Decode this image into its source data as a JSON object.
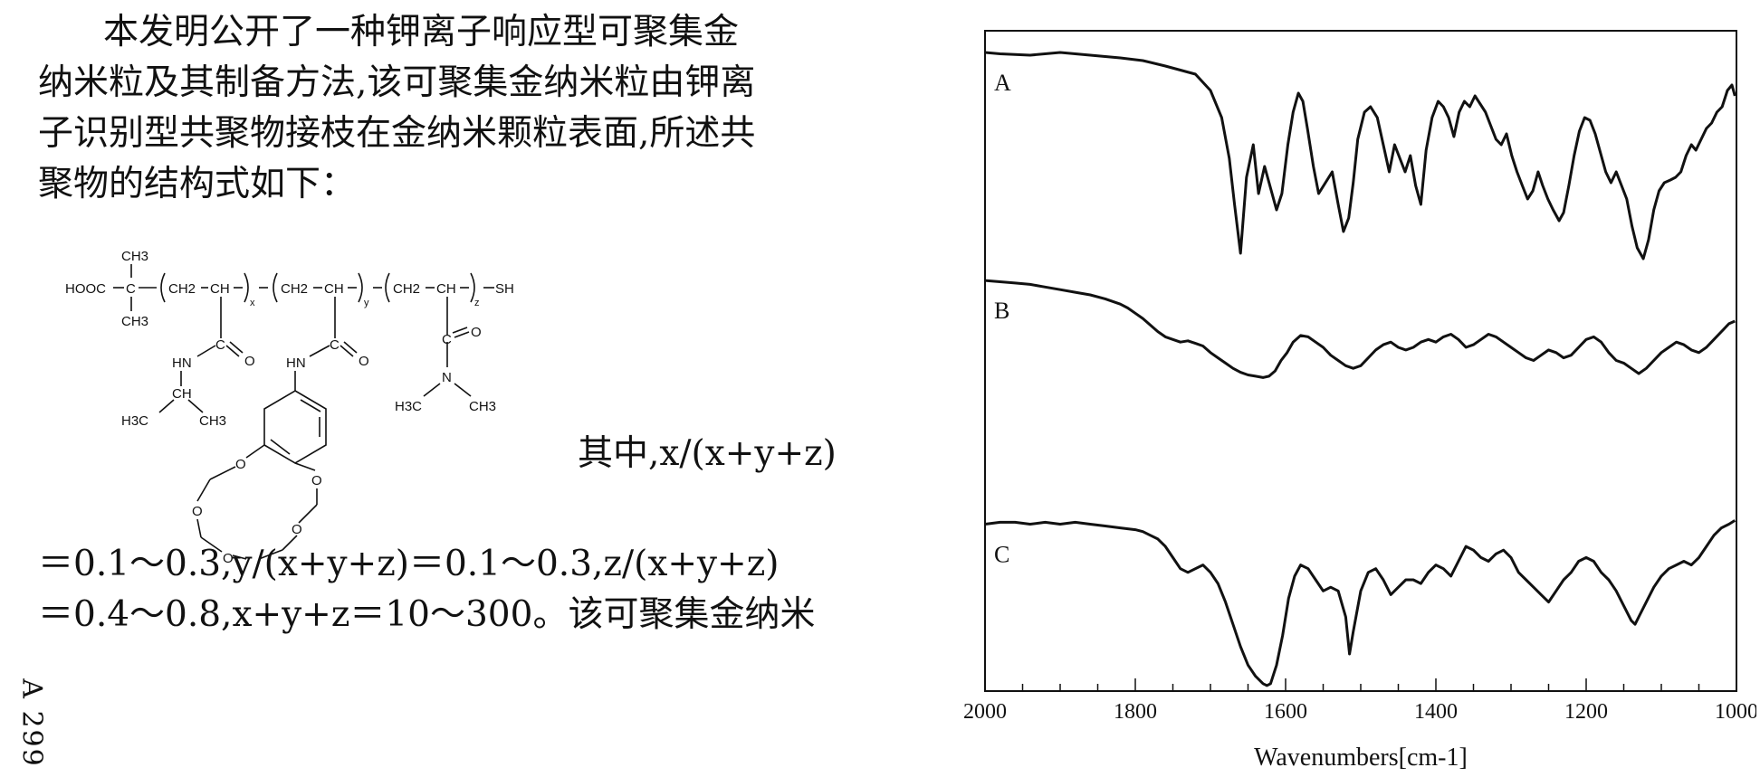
{
  "paragraph_top": [
    "本发明公开了一种钾离子响应型可聚集金",
    "纳米粒及其制备方法,该可聚集金纳米粒由钾离",
    "子识别型共聚物接枝在金纳米颗粒表面,所述共",
    "聚物的结构式如下："
  ],
  "wherein_text": "其中,x/(x+y+z)",
  "paragraph_bottom": [
    "＝0.1～0.3,y/(x+y+z)＝0.1～0.3,z/(x+y+z)",
    "＝0.4～0.8,x+y+z＝10～300。该可聚集金纳米"
  ],
  "side_code": "A 299",
  "structure_labels": {
    "ch3_top": "CH3",
    "hooc": "HOOC",
    "c_main": "C",
    "ch3_below": "CH3",
    "ch2_1": "CH2",
    "ch_1": "CH",
    "x": "x",
    "ch2_2": "CH2",
    "ch_2": "CH",
    "y": "y",
    "ch2_3": "CH2",
    "ch_3": "CH",
    "z": "z",
    "sh": "SH",
    "c_amide1": "C",
    "o1": "O",
    "hn1": "HN",
    "ch_ipr": "CH",
    "h3c_ipr": "H3C",
    "ch3_ipr": "CH3",
    "c_amide2": "C",
    "o2": "O",
    "hn2": "HN",
    "c_amide3": "C",
    "o3": "O",
    "n_dm": "N",
    "h3c_dm": "H3C",
    "ch3_dm": "CH3",
    "o_crown1": "O",
    "o_crown2": "O",
    "o_crown3": "O",
    "o_crown4": "O",
    "o_crown5": "O"
  },
  "chart_data": {
    "type": "line",
    "title": "",
    "xlabel": "Wavenumbers[cm-1]",
    "ylabel": "",
    "xlim": [
      2000,
      1000
    ],
    "xticks": [
      2000,
      1800,
      1600,
      1400,
      1200,
      1000
    ],
    "grid": false,
    "series": [
      {
        "name": "A",
        "x": [
          2000,
          1980,
          1940,
          1900,
          1860,
          1820,
          1790,
          1760,
          1720,
          1700,
          1685,
          1675,
          1668,
          1660,
          1652,
          1643,
          1636,
          1628,
          1620,
          1612,
          1605,
          1597,
          1590,
          1583,
          1577,
          1571,
          1563,
          1556,
          1547,
          1538,
          1530,
          1523,
          1516,
          1510,
          1504,
          1495,
          1487,
          1478,
          1470,
          1462,
          1455,
          1448,
          1441,
          1434,
          1427,
          1420,
          1413,
          1405,
          1397,
          1390,
          1383,
          1376,
          1369,
          1362,
          1355,
          1348,
          1341,
          1334,
          1327,
          1320,
          1313,
          1306,
          1299,
          1292,
          1285,
          1278,
          1271,
          1264,
          1258,
          1251,
          1244,
          1236,
          1230,
          1223,
          1216,
          1209,
          1202,
          1195,
          1188,
          1181,
          1174,
          1167,
          1160,
          1153,
          1146,
          1139,
          1132,
          1124,
          1117,
          1110,
          1103,
          1096,
          1088,
          1081,
          1074,
          1067,
          1060,
          1054,
          1047,
          1040,
          1033,
          1026,
          1019,
          1012,
          1006,
          1002
        ],
        "values": [
          0.94,
          0.935,
          0.93,
          0.94,
          0.93,
          0.92,
          0.91,
          0.89,
          0.86,
          0.8,
          0.7,
          0.55,
          0.38,
          0.2,
          0.48,
          0.6,
          0.42,
          0.52,
          0.44,
          0.36,
          0.42,
          0.6,
          0.72,
          0.79,
          0.76,
          0.66,
          0.52,
          0.42,
          0.46,
          0.5,
          0.38,
          0.28,
          0.33,
          0.46,
          0.62,
          0.72,
          0.74,
          0.7,
          0.6,
          0.5,
          0.6,
          0.55,
          0.5,
          0.56,
          0.45,
          0.38,
          0.58,
          0.7,
          0.76,
          0.74,
          0.7,
          0.63,
          0.72,
          0.76,
          0.74,
          0.78,
          0.75,
          0.72,
          0.67,
          0.62,
          0.6,
          0.64,
          0.56,
          0.5,
          0.45,
          0.4,
          0.43,
          0.5,
          0.45,
          0.4,
          0.36,
          0.32,
          0.35,
          0.45,
          0.56,
          0.65,
          0.7,
          0.69,
          0.64,
          0.57,
          0.5,
          0.46,
          0.5,
          0.45,
          0.4,
          0.3,
          0.22,
          0.18,
          0.25,
          0.36,
          0.43,
          0.46,
          0.47,
          0.48,
          0.5,
          0.56,
          0.6,
          0.58,
          0.62,
          0.66,
          0.68,
          0.72,
          0.74,
          0.8,
          0.82,
          0.78
        ]
      },
      {
        "name": "B",
        "x": [
          2000,
          1980,
          1960,
          1940,
          1920,
          1900,
          1880,
          1860,
          1840,
          1820,
          1810,
          1800,
          1790,
          1780,
          1770,
          1760,
          1750,
          1740,
          1730,
          1720,
          1710,
          1700,
          1690,
          1680,
          1670,
          1660,
          1650,
          1640,
          1630,
          1622,
          1614,
          1606,
          1598,
          1590,
          1580,
          1570,
          1560,
          1550,
          1540,
          1530,
          1520,
          1510,
          1500,
          1490,
          1480,
          1470,
          1460,
          1450,
          1440,
          1430,
          1420,
          1410,
          1400,
          1390,
          1380,
          1370,
          1360,
          1350,
          1340,
          1330,
          1320,
          1310,
          1300,
          1290,
          1280,
          1270,
          1260,
          1250,
          1240,
          1230,
          1220,
          1210,
          1200,
          1190,
          1180,
          1170,
          1160,
          1150,
          1140,
          1130,
          1120,
          1110,
          1100,
          1090,
          1080,
          1070,
          1060,
          1050,
          1040,
          1030,
          1020,
          1010,
          1002
        ],
        "values": [
          0.655,
          0.65,
          0.645,
          0.64,
          0.63,
          0.62,
          0.61,
          0.6,
          0.585,
          0.565,
          0.55,
          0.53,
          0.51,
          0.485,
          0.46,
          0.44,
          0.43,
          0.42,
          0.425,
          0.415,
          0.405,
          0.38,
          0.36,
          0.34,
          0.32,
          0.305,
          0.295,
          0.29,
          0.285,
          0.29,
          0.31,
          0.35,
          0.38,
          0.42,
          0.445,
          0.44,
          0.42,
          0.4,
          0.37,
          0.35,
          0.33,
          0.32,
          0.33,
          0.36,
          0.39,
          0.41,
          0.42,
          0.4,
          0.39,
          0.4,
          0.42,
          0.43,
          0.42,
          0.44,
          0.45,
          0.43,
          0.4,
          0.41,
          0.43,
          0.45,
          0.44,
          0.42,
          0.4,
          0.38,
          0.36,
          0.35,
          0.37,
          0.39,
          0.38,
          0.36,
          0.37,
          0.4,
          0.43,
          0.44,
          0.42,
          0.38,
          0.35,
          0.34,
          0.32,
          0.3,
          0.32,
          0.35,
          0.38,
          0.4,
          0.42,
          0.41,
          0.39,
          0.38,
          0.4,
          0.43,
          0.46,
          0.49,
          0.5
        ]
      },
      {
        "name": "C",
        "x": [
          2000,
          1980,
          1960,
          1940,
          1920,
          1900,
          1880,
          1860,
          1840,
          1820,
          1800,
          1790,
          1780,
          1770,
          1760,
          1750,
          1740,
          1730,
          1720,
          1710,
          1700,
          1690,
          1680,
          1670,
          1660,
          1650,
          1640,
          1630,
          1625,
          1620,
          1612,
          1604,
          1596,
          1588,
          1580,
          1570,
          1560,
          1550,
          1540,
          1530,
          1520,
          1515,
          1510,
          1500,
          1490,
          1480,
          1470,
          1460,
          1450,
          1440,
          1430,
          1420,
          1410,
          1400,
          1390,
          1380,
          1370,
          1360,
          1350,
          1340,
          1330,
          1320,
          1310,
          1300,
          1290,
          1280,
          1270,
          1260,
          1250,
          1240,
          1230,
          1220,
          1210,
          1200,
          1190,
          1180,
          1170,
          1160,
          1150,
          1140,
          1135,
          1130,
          1120,
          1110,
          1100,
          1090,
          1080,
          1070,
          1060,
          1050,
          1040,
          1030,
          1020,
          1010,
          1002
        ],
        "values": [
          0.45,
          0.455,
          0.455,
          0.45,
          0.455,
          0.45,
          0.455,
          0.45,
          0.445,
          0.44,
          0.435,
          0.43,
          0.42,
          0.41,
          0.39,
          0.36,
          0.33,
          0.32,
          0.33,
          0.34,
          0.32,
          0.29,
          0.24,
          0.18,
          0.12,
          0.07,
          0.04,
          0.02,
          0.015,
          0.02,
          0.07,
          0.15,
          0.25,
          0.31,
          0.34,
          0.33,
          0.3,
          0.27,
          0.28,
          0.27,
          0.2,
          0.1,
          0.16,
          0.27,
          0.32,
          0.33,
          0.3,
          0.26,
          0.28,
          0.3,
          0.3,
          0.29,
          0.32,
          0.34,
          0.33,
          0.31,
          0.35,
          0.39,
          0.38,
          0.36,
          0.35,
          0.37,
          0.38,
          0.36,
          0.32,
          0.3,
          0.28,
          0.26,
          0.24,
          0.27,
          0.3,
          0.32,
          0.35,
          0.36,
          0.35,
          0.32,
          0.3,
          0.27,
          0.23,
          0.19,
          0.18,
          0.2,
          0.24,
          0.28,
          0.31,
          0.33,
          0.34,
          0.35,
          0.34,
          0.36,
          0.39,
          0.42,
          0.44,
          0.45,
          0.46
        ]
      }
    ]
  }
}
